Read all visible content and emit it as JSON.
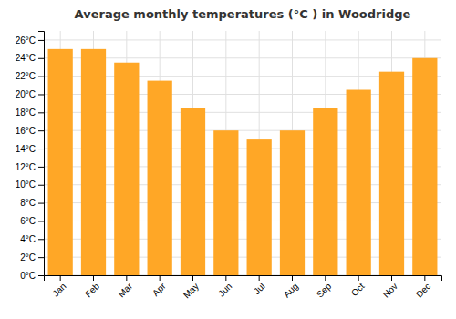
{
  "chart_data": {
    "type": "bar",
    "title": "Average monthly temperatures (°C ) in Woodridge",
    "categories": [
      "Jan",
      "Feb",
      "Mar",
      "Apr",
      "May",
      "Jun",
      "Jul",
      "Aug",
      "Sep",
      "Oct",
      "Nov",
      "Dec"
    ],
    "values": [
      25.0,
      25.0,
      23.5,
      21.5,
      18.5,
      16.0,
      15.0,
      16.0,
      18.5,
      20.5,
      22.5,
      24.0
    ],
    "color": "#FFA726",
    "ylim": [
      0,
      27
    ],
    "yticks": [
      {
        "value": 0,
        "label": "0°C"
      },
      {
        "value": 2,
        "label": "2°C"
      },
      {
        "value": 4,
        "label": "4°C"
      },
      {
        "value": 6,
        "label": "6°C"
      },
      {
        "value": 8,
        "label": "8°C"
      },
      {
        "value": 10,
        "label": "10°C"
      },
      {
        "value": 12,
        "label": "12°C"
      },
      {
        "value": 14,
        "label": "14°C"
      },
      {
        "value": 16,
        "label": "16°C"
      },
      {
        "value": 18,
        "label": "18°C"
      },
      {
        "value": 20,
        "label": "20°C"
      },
      {
        "value": 22,
        "label": "22°C"
      },
      {
        "value": 24,
        "label": "24°C"
      },
      {
        "value": 26,
        "label": "26°C"
      }
    ],
    "grid": true
  }
}
